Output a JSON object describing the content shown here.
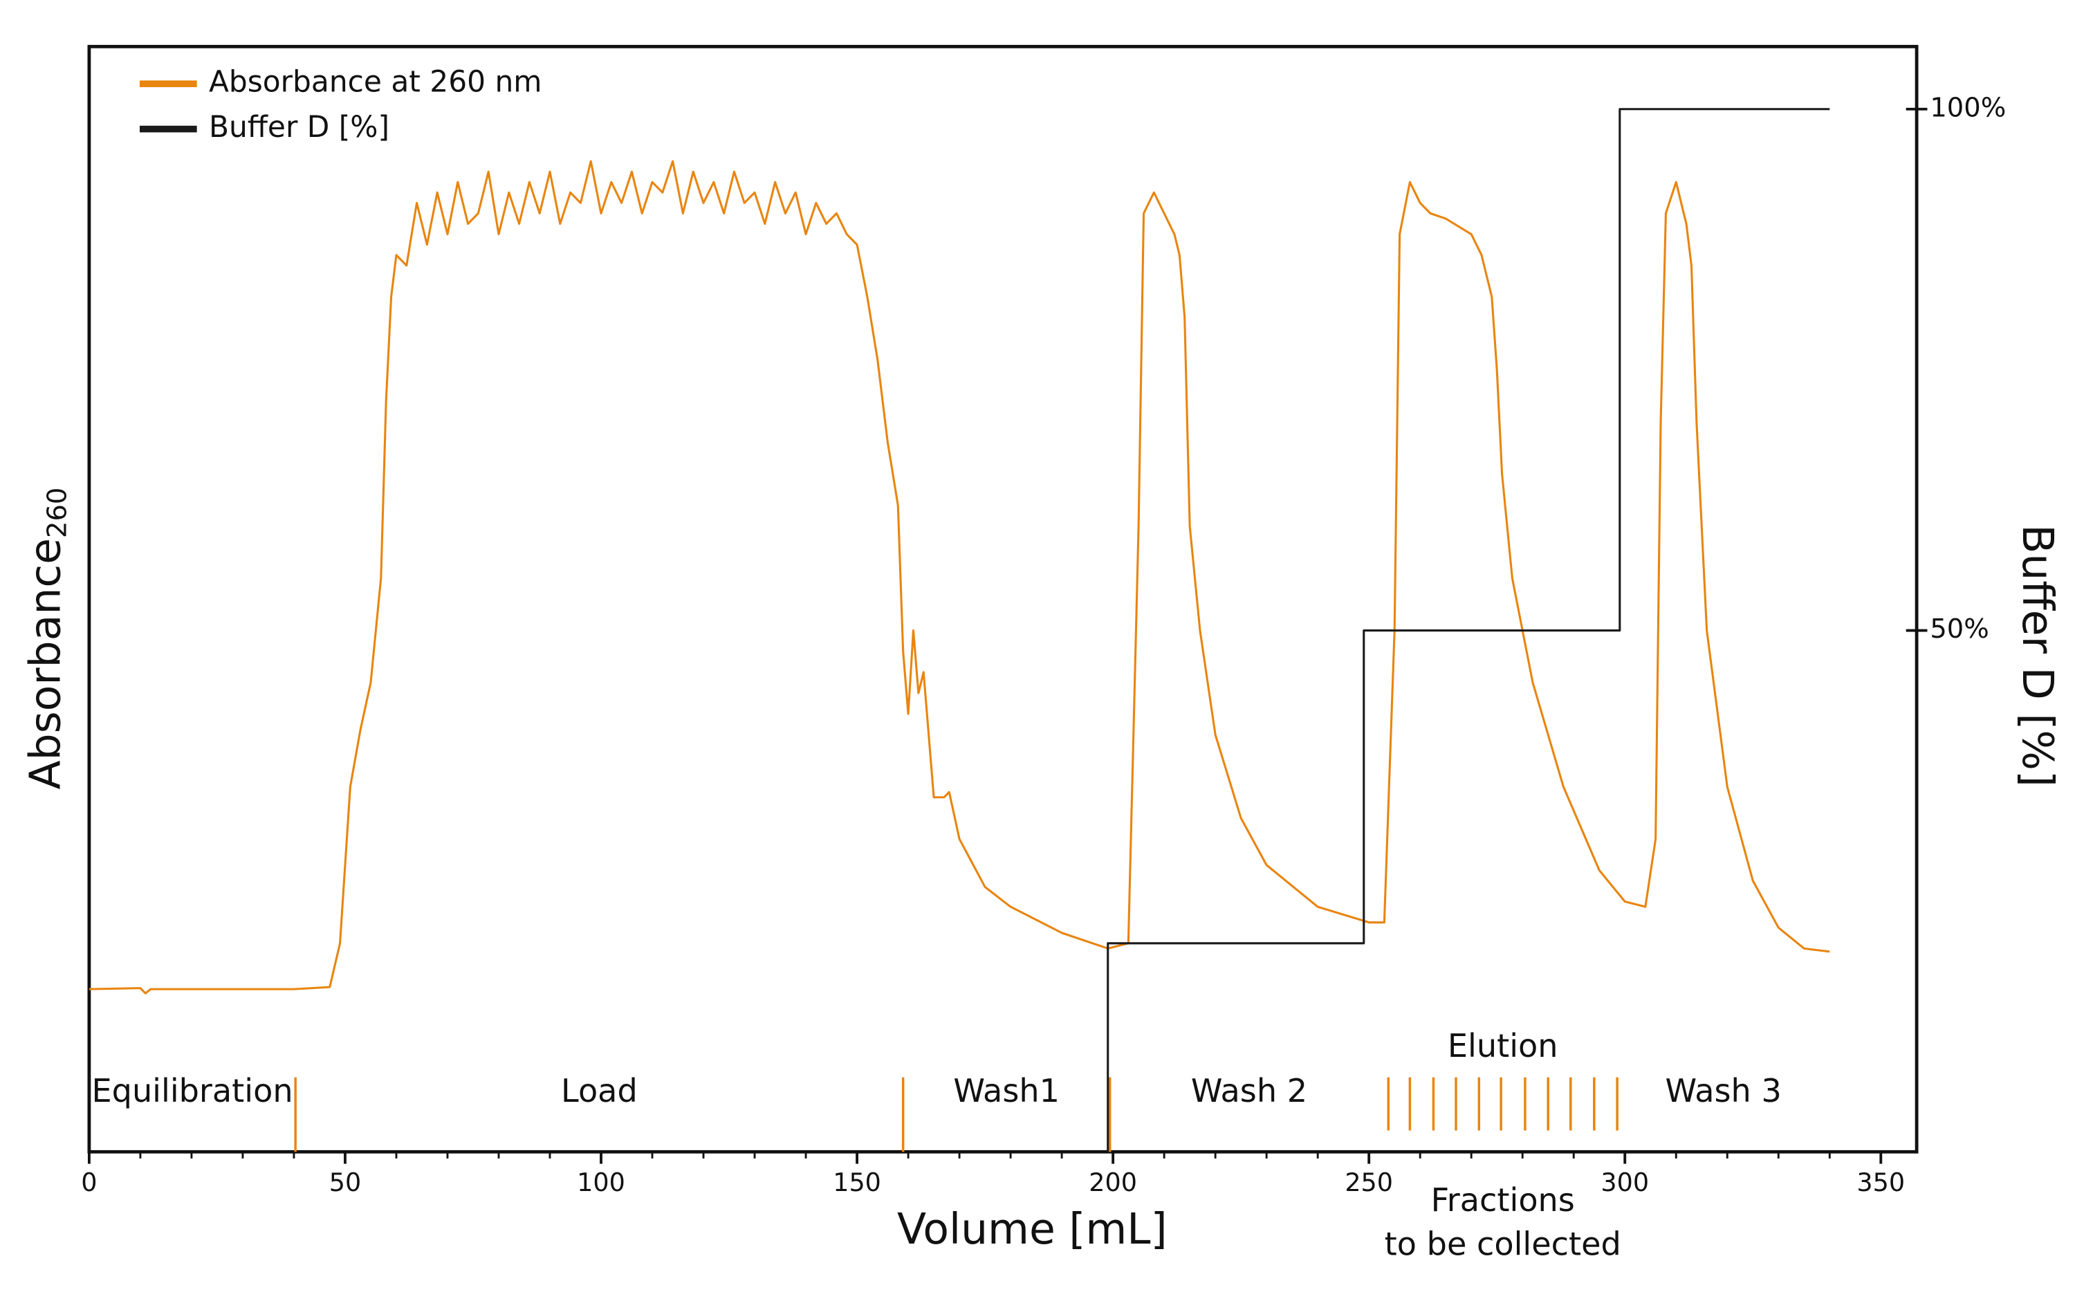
{
  "chart_data": {
    "type": "line",
    "xlabel": "Volume [mL]",
    "ylabel": "Absorbance",
    "ylabel_sub": "260",
    "y2label": "Buffer D [%]",
    "xlim": [
      0,
      357
    ],
    "xticks": [
      0,
      50,
      100,
      150,
      200,
      250,
      300,
      350
    ],
    "xminorticks": [
      10,
      20,
      30,
      40,
      60,
      70,
      80,
      90,
      110,
      120,
      130,
      140,
      160,
      170,
      180,
      190,
      210,
      220,
      230,
      240,
      260,
      270,
      280,
      290,
      310,
      320,
      330,
      340
    ],
    "ylim": [
      0,
      106
    ],
    "y2lim": [
      0,
      106
    ],
    "y2ticks": [
      {
        "value": 50,
        "label": "50%"
      },
      {
        "value": 100,
        "label": "100%"
      }
    ],
    "legend": "upper left",
    "series": [
      {
        "name": "Absorbance at 260 nm",
        "color": "#e8850f",
        "x": [
          0,
          10,
          11,
          12,
          40,
          47,
          49,
          51,
          53,
          55,
          57,
          58,
          59,
          60,
          62,
          64,
          66,
          68,
          70,
          72,
          74,
          76,
          78,
          80,
          82,
          84,
          86,
          88,
          90,
          92,
          94,
          96,
          98,
          100,
          102,
          104,
          106,
          108,
          110,
          112,
          114,
          116,
          118,
          120,
          122,
          124,
          126,
          128,
          130,
          132,
          134,
          136,
          138,
          140,
          142,
          144,
          146,
          148,
          150,
          152,
          154,
          156,
          158,
          159,
          160,
          161,
          162,
          163,
          165,
          167,
          168,
          170,
          175,
          180,
          190,
          199,
          203,
          205,
          206,
          208,
          210,
          212,
          213,
          214,
          215,
          217,
          220,
          225,
          230,
          240,
          250,
          253,
          255,
          256,
          258,
          260,
          262,
          265,
          270,
          272,
          274,
          275,
          276,
          278,
          282,
          288,
          295,
          300,
          304,
          306,
          307,
          308,
          310,
          312,
          313,
          314,
          316,
          320,
          325,
          330,
          335,
          340
        ],
        "values": [
          15.6,
          15.7,
          15.2,
          15.6,
          15.6,
          15.8,
          20,
          35,
          40.5,
          45,
          55,
          72,
          82,
          86,
          85,
          91,
          87,
          92,
          88,
          93,
          89,
          90,
          94,
          88,
          92,
          89,
          93,
          90,
          94,
          89,
          92,
          91,
          95,
          90,
          93,
          91,
          94,
          90,
          93,
          92,
          95,
          90,
          94,
          91,
          93,
          90,
          94,
          91,
          92,
          89,
          93,
          90,
          92,
          88,
          91,
          89,
          90,
          88,
          87,
          82,
          76,
          68,
          62,
          48,
          42,
          50,
          44,
          46,
          34,
          34,
          34.5,
          30,
          25.4,
          23.5,
          21,
          19.5,
          20,
          60,
          90,
          92,
          90,
          88,
          86,
          80,
          60,
          50,
          40,
          32,
          27.5,
          23.5,
          22,
          22,
          50,
          88,
          93,
          91,
          90,
          89.5,
          88,
          86,
          82,
          75,
          65,
          55,
          45,
          35,
          27,
          24,
          23.5,
          30,
          70,
          90,
          93,
          89,
          85,
          70,
          50,
          35,
          26,
          21.5,
          19.5,
          19.2
        ]
      },
      {
        "name": "Buffer D [%]",
        "color": "#1a1a1a",
        "axis": "y2",
        "x": [
          199,
          199,
          249,
          249,
          299,
          299,
          340
        ],
        "values": [
          0,
          20,
          20,
          50,
          50,
          100,
          100
        ]
      }
    ],
    "phases": [
      {
        "label": "Equilibration",
        "start": 0,
        "end": 40.3
      },
      {
        "label": "Load",
        "start": 40.3,
        "end": 159
      },
      {
        "label": "Wash1",
        "start": 159,
        "end": 199.4
      },
      {
        "label": "Wash 2",
        "start": 199.4,
        "end": 253.8
      },
      {
        "label": "Wash 3",
        "start": 298.5,
        "end": 340
      }
    ],
    "separators": [
      40.3,
      159,
      199.4
    ],
    "fractions": [
      253.8,
      258,
      262.6,
      267,
      271.5,
      275.8,
      280.5,
      285,
      289.4,
      294,
      298.5
    ],
    "fractions_title": "Elution",
    "fractions_label": [
      "Fractions",
      "to be collected"
    ]
  }
}
